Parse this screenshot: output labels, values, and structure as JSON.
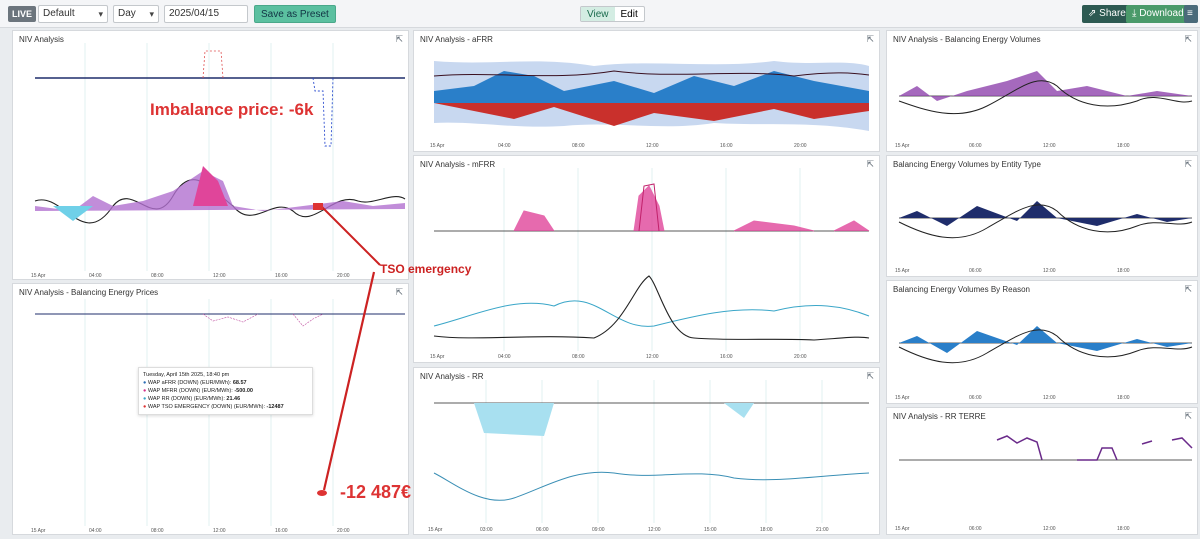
{
  "toolbar": {
    "live": "LIVE",
    "preset": "Default",
    "period": "Day",
    "date": "2025/04/15",
    "save_preset": "Save as Preset",
    "view": "View",
    "edit": "Edit",
    "share": "Share",
    "download": "Download"
  },
  "panels": {
    "niv_main": "NIV Analysis",
    "prices": "NIV Analysis - Balancing Energy Prices",
    "afrr": "NIV Analysis - aFRR",
    "mfrr": "NIV Analysis - mFRR",
    "rr": "NIV Analysis - RR",
    "volumes": "NIV Analysis - Balancing Energy Volumes",
    "entity": "Balancing Energy Volumes by Entity Type",
    "reason": "Balancing Energy Volumes By Reason",
    "rr_terre": "NIV Analysis - RR TERRE"
  },
  "annotations": {
    "imbalance": "Imbalance price: -6k",
    "tso": "TSO emergency",
    "value": "-12 487€"
  },
  "tooltip": {
    "date": "Tuesday, April 15th 2025, 18:40 pm",
    "rows": [
      {
        "label": "WAP aFRR (DOWN) (EUR/MWh):",
        "value": "68.57",
        "color": "#2a6db5"
      },
      {
        "label": "WAP MFRR (DOWN) (EUR/MWh):",
        "value": "-500.00",
        "color": "#d4308a"
      },
      {
        "label": "WAP RR (DOWN) (EUR/MWh):",
        "value": "21.46",
        "color": "#3aa6c8"
      },
      {
        "label": "WAP TSO EMERGENCY (DOWN) (EUR/MWh):",
        "value": "-12487",
        "color": "#d33"
      }
    ]
  },
  "axes": {
    "x_ticks": [
      "15 Apr",
      "04:00",
      "08:00",
      "12:00",
      "16:00",
      "20:00"
    ],
    "x_ticks_short": [
      "15 Apr",
      "06:00",
      "12:00",
      "18:00"
    ],
    "x_ticks_rr": [
      "15 Apr",
      "03:00",
      "06:00",
      "09:00",
      "12:00",
      "15:00",
      "18:00",
      "21:00"
    ]
  },
  "colors": {
    "navy": "#1f2d6b",
    "magenta": "#e0459a",
    "purple": "#8e44ad",
    "cyan": "#6fd0e8",
    "blue": "#2a7fc9",
    "red": "#c9302c",
    "annotation": "#d33"
  }
}
